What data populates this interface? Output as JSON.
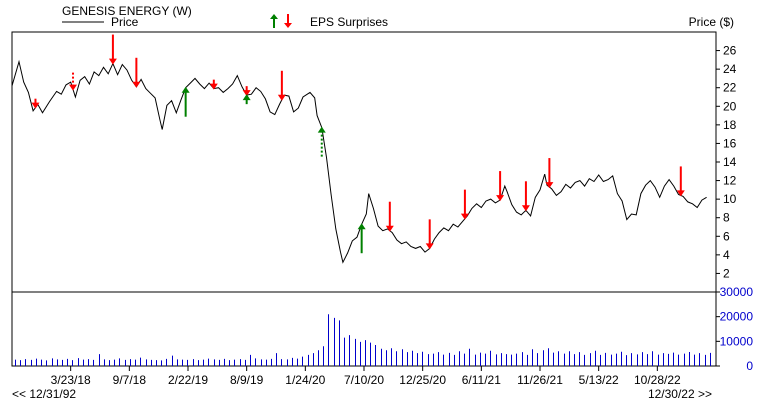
{
  "chart_data": {
    "type": "line",
    "title": "GENESIS ENERGY (W)",
    "legend": {
      "price_label": "Price",
      "eps_label": "EPS Surprises",
      "placement": "top"
    },
    "y_axis": {
      "label": "Price ($)",
      "min": 0,
      "max": 28,
      "ticks": [
        2,
        4,
        6,
        8,
        10,
        12,
        14,
        16,
        18,
        20,
        22,
        24,
        26
      ]
    },
    "volume_axis": {
      "min": 0,
      "max": 30000,
      "ticks": [
        0,
        10000,
        20000,
        30000
      ],
      "tick_labels": [
        "0",
        "10000",
        "20000",
        "30000"
      ]
    },
    "x_axis": {
      "start": 0,
      "end": 30.0,
      "ticks": [
        {
          "label": "3/23/18",
          "x": 2.5
        },
        {
          "label": "9/7/18",
          "x": 5.0
        },
        {
          "label": "2/22/19",
          "x": 7.5
        },
        {
          "label": "8/9/19",
          "x": 10.0
        },
        {
          "label": "1/24/20",
          "x": 12.5
        },
        {
          "label": "7/10/20",
          "x": 15.0
        },
        {
          "label": "12/25/20",
          "x": 17.5
        },
        {
          "label": "6/11/21",
          "x": 20.0
        },
        {
          "label": "11/26/21",
          "x": 22.5
        },
        {
          "label": "5/13/22",
          "x": 25.0
        },
        {
          "label": "10/28/22",
          "x": 27.5
        }
      ],
      "nav_left": "<< 12/31/92",
      "nav_right": "12/30/22 >>"
    },
    "colors": {
      "price": "#000000",
      "volume": "#0000cc",
      "eps_up": "#008000",
      "eps_down": "#ff0000",
      "frame": "#000000"
    },
    "series": [
      {
        "name": "Price",
        "points": [
          [
            0.0,
            22.2
          ],
          [
            0.3,
            24.8
          ],
          [
            0.5,
            22.6
          ],
          [
            0.7,
            21.5
          ],
          [
            0.9,
            19.5
          ],
          [
            1.1,
            20.2
          ],
          [
            1.3,
            19.3
          ],
          [
            1.6,
            20.5
          ],
          [
            1.9,
            21.6
          ],
          [
            2.1,
            21.3
          ],
          [
            2.3,
            22.3
          ],
          [
            2.5,
            22.6
          ],
          [
            2.7,
            21.0
          ],
          [
            2.9,
            22.8
          ],
          [
            3.1,
            23.2
          ],
          [
            3.3,
            22.4
          ],
          [
            3.5,
            23.7
          ],
          [
            3.7,
            23.3
          ],
          [
            3.9,
            24.2
          ],
          [
            4.1,
            23.5
          ],
          [
            4.3,
            24.6
          ],
          [
            4.5,
            23.4
          ],
          [
            4.7,
            24.5
          ],
          [
            4.9,
            23.9
          ],
          [
            5.1,
            22.8
          ],
          [
            5.3,
            22.1
          ],
          [
            5.5,
            22.9
          ],
          [
            5.7,
            21.9
          ],
          [
            5.9,
            21.4
          ],
          [
            6.1,
            20.9
          ],
          [
            6.3,
            18.6
          ],
          [
            6.4,
            17.5
          ],
          [
            6.6,
            20.1
          ],
          [
            6.8,
            20.6
          ],
          [
            7.0,
            19.3
          ],
          [
            7.2,
            20.7
          ],
          [
            7.4,
            22.0
          ],
          [
            7.6,
            22.5
          ],
          [
            7.8,
            23.0
          ],
          [
            8.0,
            22.4
          ],
          [
            8.2,
            21.9
          ],
          [
            8.4,
            22.5
          ],
          [
            8.6,
            21.9
          ],
          [
            8.8,
            22.0
          ],
          [
            9.0,
            21.5
          ],
          [
            9.2,
            21.9
          ],
          [
            9.4,
            22.4
          ],
          [
            9.6,
            23.3
          ],
          [
            9.8,
            22.1
          ],
          [
            10.0,
            21.2
          ],
          [
            10.2,
            21.3
          ],
          [
            10.4,
            22.0
          ],
          [
            10.6,
            21.6
          ],
          [
            10.8,
            20.8
          ],
          [
            11.0,
            19.4
          ],
          [
            11.2,
            19.1
          ],
          [
            11.4,
            20.2
          ],
          [
            11.6,
            21.2
          ],
          [
            11.8,
            21.1
          ],
          [
            12.0,
            19.4
          ],
          [
            12.2,
            19.8
          ],
          [
            12.4,
            21.0
          ],
          [
            12.7,
            21.5
          ],
          [
            12.9,
            20.9
          ],
          [
            13.0,
            19.0
          ],
          [
            13.2,
            17.7
          ],
          [
            13.4,
            14.5
          ],
          [
            13.6,
            10.5
          ],
          [
            13.8,
            6.8
          ],
          [
            14.0,
            4.3
          ],
          [
            14.1,
            3.2
          ],
          [
            14.3,
            4.2
          ],
          [
            14.5,
            5.5
          ],
          [
            14.7,
            5.9
          ],
          [
            14.9,
            7.3
          ],
          [
            15.1,
            8.4
          ],
          [
            15.2,
            10.6
          ],
          [
            15.4,
            9.0
          ],
          [
            15.6,
            7.1
          ],
          [
            15.8,
            6.6
          ],
          [
            16.0,
            6.8
          ],
          [
            16.2,
            6.4
          ],
          [
            16.4,
            5.6
          ],
          [
            16.6,
            5.2
          ],
          [
            16.8,
            5.4
          ],
          [
            17.0,
            4.9
          ],
          [
            17.2,
            4.7
          ],
          [
            17.4,
            4.9
          ],
          [
            17.6,
            4.3
          ],
          [
            17.8,
            4.7
          ],
          [
            18.0,
            5.7
          ],
          [
            18.2,
            6.4
          ],
          [
            18.4,
            6.9
          ],
          [
            18.6,
            6.6
          ],
          [
            18.8,
            7.3
          ],
          [
            19.0,
            7.0
          ],
          [
            19.2,
            7.6
          ],
          [
            19.4,
            8.2
          ],
          [
            19.6,
            9.0
          ],
          [
            19.8,
            9.5
          ],
          [
            20.0,
            9.1
          ],
          [
            20.2,
            9.8
          ],
          [
            20.4,
            10.0
          ],
          [
            20.6,
            9.6
          ],
          [
            20.8,
            9.9
          ],
          [
            21.0,
            11.4
          ],
          [
            21.1,
            10.8
          ],
          [
            21.3,
            9.4
          ],
          [
            21.5,
            8.6
          ],
          [
            21.7,
            8.3
          ],
          [
            21.9,
            8.8
          ],
          [
            22.1,
            8.2
          ],
          [
            22.3,
            10.2
          ],
          [
            22.5,
            11.0
          ],
          [
            22.7,
            12.7
          ],
          [
            22.8,
            11.5
          ],
          [
            23.0,
            11.1
          ],
          [
            23.2,
            10.4
          ],
          [
            23.4,
            10.8
          ],
          [
            23.6,
            11.6
          ],
          [
            23.8,
            11.2
          ],
          [
            24.0,
            11.8
          ],
          [
            24.2,
            12.0
          ],
          [
            24.4,
            11.4
          ],
          [
            24.6,
            12.2
          ],
          [
            24.8,
            11.9
          ],
          [
            25.0,
            12.6
          ],
          [
            25.2,
            11.9
          ],
          [
            25.4,
            12.1
          ],
          [
            25.6,
            12.5
          ],
          [
            25.8,
            10.6
          ],
          [
            26.0,
            9.8
          ],
          [
            26.2,
            7.8
          ],
          [
            26.4,
            8.4
          ],
          [
            26.6,
            8.3
          ],
          [
            26.8,
            10.6
          ],
          [
            27.0,
            11.5
          ],
          [
            27.2,
            12.0
          ],
          [
            27.4,
            11.3
          ],
          [
            27.6,
            10.2
          ],
          [
            27.8,
            11.4
          ],
          [
            28.0,
            12.1
          ],
          [
            28.2,
            11.4
          ],
          [
            28.4,
            10.5
          ],
          [
            28.6,
            10.3
          ],
          [
            28.8,
            9.7
          ],
          [
            29.0,
            9.5
          ],
          [
            29.2,
            9.1
          ],
          [
            29.4,
            9.9
          ],
          [
            29.6,
            10.2
          ]
        ]
      },
      {
        "name": "Volume",
        "values": [
          2600,
          2400,
          2800,
          2500,
          3000,
          2600,
          2300,
          3100,
          2700,
          2500,
          2900,
          2400,
          3200,
          2600,
          2800,
          2500,
          4800,
          2700,
          2400,
          2600,
          3100,
          2500,
          2800,
          2600,
          3400,
          2700,
          2500,
          2400,
          2300,
          2900,
          4200,
          2700,
          2600,
          2500,
          2800,
          2400,
          2600,
          3000,
          2700,
          2500,
          2900,
          2400,
          2600,
          2800,
          2500,
          4500,
          3100,
          2700,
          2600,
          2900,
          5200,
          2800,
          2700,
          3300,
          3000,
          3800,
          4500,
          5200,
          6400,
          8000,
          21000,
          19500,
          18500,
          11500,
          12500,
          11000,
          9800,
          10500,
          9500,
          8500,
          7000,
          6400,
          7200,
          6000,
          6800,
          5600,
          6200,
          5200,
          5800,
          4800,
          5000,
          5600,
          4600,
          5300,
          4500,
          6000,
          5000,
          7000,
          4600,
          5400,
          5000,
          6200,
          4700,
          5200,
          4800,
          4600,
          5000,
          5600,
          4500,
          6800,
          5200,
          6400,
          7200,
          5400,
          6000,
          5000,
          6000,
          4800,
          5600,
          4500,
          5200,
          6200,
          4500,
          5300,
          4600,
          5000,
          5800,
          4400,
          5200,
          4700,
          5600,
          4800,
          6000,
          4600,
          5200,
          4900,
          5400,
          4600,
          5000,
          5700,
          4600,
          5200,
          4500,
          5300
        ]
      }
    ],
    "eps_surprises": [
      {
        "x": 1.0,
        "dir": "down",
        "size": "small",
        "style": "solid"
      },
      {
        "x": 2.6,
        "dir": "down",
        "size": "medium",
        "style": "dashed"
      },
      {
        "x": 4.3,
        "dir": "down",
        "size": "large",
        "style": "solid"
      },
      {
        "x": 5.3,
        "dir": "down",
        "size": "large",
        "style": "solid"
      },
      {
        "x": 7.4,
        "dir": "up",
        "size": "large",
        "style": "solid"
      },
      {
        "x": 8.6,
        "dir": "down",
        "size": "small",
        "style": "solid"
      },
      {
        "x": 10.0,
        "dir": "down",
        "size": "small",
        "style": "solid"
      },
      {
        "x": 10.0,
        "dir": "up",
        "size": "small",
        "style": "solid"
      },
      {
        "x": 11.5,
        "dir": "down",
        "size": "large",
        "style": "solid"
      },
      {
        "x": 13.2,
        "dir": "up",
        "size": "large",
        "style": "dashed"
      },
      {
        "x": 14.9,
        "dir": "up",
        "size": "large",
        "style": "solid"
      },
      {
        "x": 16.1,
        "dir": "down",
        "size": "large",
        "style": "solid"
      },
      {
        "x": 17.8,
        "dir": "down",
        "size": "large",
        "style": "solid"
      },
      {
        "x": 19.3,
        "dir": "down",
        "size": "large",
        "style": "solid"
      },
      {
        "x": 20.8,
        "dir": "down",
        "size": "large",
        "style": "solid"
      },
      {
        "x": 21.9,
        "dir": "down",
        "size": "large",
        "style": "solid"
      },
      {
        "x": 22.9,
        "dir": "down",
        "size": "large",
        "style": "solid"
      },
      {
        "x": 28.5,
        "dir": "down",
        "size": "large",
        "style": "solid"
      }
    ]
  }
}
